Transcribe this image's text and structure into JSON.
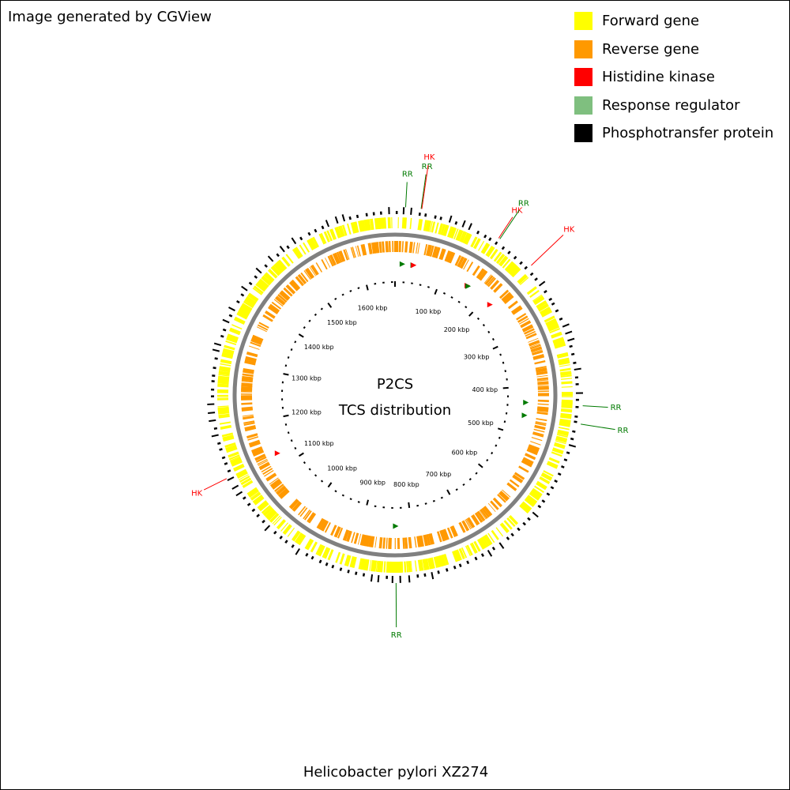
{
  "credit": "Image generated by CGView",
  "legend": [
    {
      "label": "Forward gene",
      "color": "#ffff00"
    },
    {
      "label": "Reverse gene",
      "color": "#ff9900"
    },
    {
      "label": "Histidine kinase",
      "color": "#ff0000"
    },
    {
      "label": "Response regulator",
      "color": "#7fbf7f"
    },
    {
      "label": "Phosphotransfer protein",
      "color": "#000000"
    }
  ],
  "center_title": "P2CS",
  "center_subtitle": "TCS distribution",
  "footer": "Helicobacter pylori XZ274",
  "ruler_labels": [
    "100 kbp",
    "200 kbp",
    "300 kbp",
    "400 kbp",
    "500 kbp",
    "600 kbp",
    "700 kbp",
    "800 kbp",
    "900 kbp",
    "1000 kbp",
    "1100 kbp",
    "1200 kbp",
    "1300 kbp",
    "1400 kbp",
    "1500 kbp",
    "1600 kbp"
  ],
  "annotations": [
    {
      "label": "RR",
      "kind": "RR",
      "pos_kbp": 15
    },
    {
      "label": "RR",
      "kind": "RR",
      "pos_kbp": 37
    },
    {
      "label": "HK",
      "kind": "HK",
      "pos_kbp": 38
    },
    {
      "label": "HK",
      "kind": "HK",
      "pos_kbp": 155
    },
    {
      "label": "RR",
      "kind": "RR",
      "pos_kbp": 157
    },
    {
      "label": "HK",
      "kind": "HK",
      "pos_kbp": 215
    },
    {
      "label": "RR",
      "kind": "RR",
      "pos_kbp": 432
    },
    {
      "label": "RR",
      "kind": "RR",
      "pos_kbp": 458
    },
    {
      "label": "RR",
      "kind": "RR",
      "pos_kbp": 832
    },
    {
      "label": "HK",
      "kind": "HK",
      "pos_kbp": 1128
    }
  ],
  "colors": {
    "hk": "#ff0000",
    "rr": "#007a00",
    "backbone": "#808080"
  }
}
